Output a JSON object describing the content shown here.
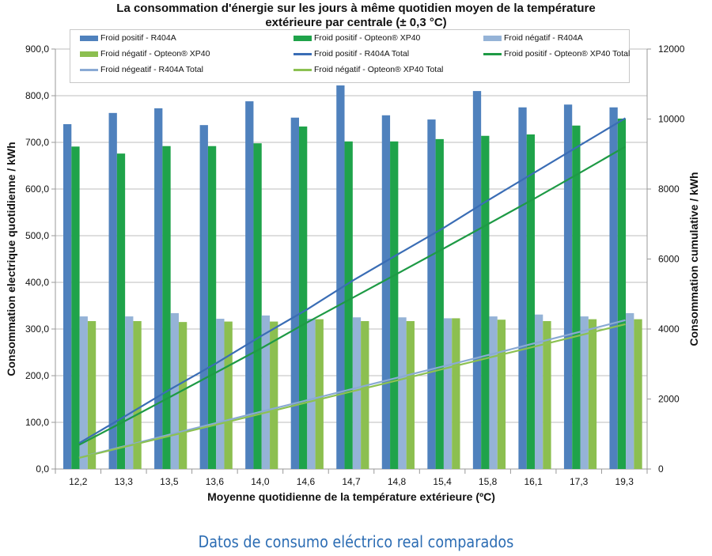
{
  "chart_data": {
    "type": "bar",
    "title": "La consommation d'énergie sur les jours à même quotidien moyen de la température",
    "title_line2": "extérieure par centrale (± 0,3 °C)",
    "xlabel": "Moyenne quotidienne de la température extérieure (ºC)",
    "ylabel": "Consommation electrique quotidienne / kWh",
    "y2label": "Consommation  cumulative / kWh",
    "ylim": [
      0,
      900
    ],
    "y2lim": [
      0,
      12000
    ],
    "yticks": [
      "0,0",
      "100,0",
      "200,0",
      "300,0",
      "400,0",
      "500,0",
      "600,0",
      "700,0",
      "800,0",
      "900,0"
    ],
    "y2ticks": [
      "0",
      "2000",
      "4000",
      "6000",
      "8000",
      "10000",
      "12000"
    ],
    "categories": [
      "12,2",
      "13,3",
      "13,5",
      "13,6",
      "14,0",
      "14,6",
      "14,7",
      "14,8",
      "15,4",
      "15,8",
      "16,1",
      "17,3",
      "19,3"
    ],
    "legend_position": "top",
    "series": [
      {
        "name": "Froid positif - R404A",
        "kind": "bar",
        "color": "#4f81bd",
        "values": [
          739,
          763,
          773,
          737,
          788,
          753,
          822,
          758,
          749,
          810,
          775,
          781,
          775
        ]
      },
      {
        "name": "Froid positif - Opteon® XP40",
        "kind": "bar",
        "color": "#1fa34a",
        "values": [
          691,
          676,
          692,
          692,
          698,
          734,
          702,
          702,
          707,
          714,
          717,
          736,
          751
        ]
      },
      {
        "name": "Froid négatif - R404A",
        "kind": "bar",
        "color": "#95b3d7",
        "values": [
          327,
          327,
          334,
          322,
          329,
          322,
          325,
          325,
          323,
          327,
          331,
          327,
          334
        ]
      },
      {
        "name": "Froid négatif - Opteon® XP40",
        "kind": "bar",
        "color": "#8cbf50",
        "values": [
          317,
          317,
          315,
          316,
          316,
          321,
          317,
          317,
          323,
          320,
          317,
          321,
          321
        ]
      },
      {
        "name": "Froid positif - R404A Total",
        "kind": "line",
        "axis": "right",
        "color": "#3a6db5",
        "values": [
          739,
          1502,
          2275,
          3012,
          3800,
          4553,
          5375,
          6133,
          6882,
          7692,
          8467,
          9248,
          10023
        ]
      },
      {
        "name": "Froid positif - Opteon® XP40 Total",
        "kind": "line",
        "axis": "right",
        "color": "#1e9a45",
        "values": [
          691,
          1367,
          2059,
          2751,
          3449,
          4183,
          4885,
          5587,
          6294,
          7008,
          7725,
          8461,
          9212
        ]
      },
      {
        "name": "Froid négeatif - R404A Total",
        "kind": "line",
        "axis": "right",
        "color": "#8aaad4",
        "values": [
          327,
          654,
          988,
          1310,
          1639,
          1961,
          2286,
          2611,
          2934,
          3261,
          3592,
          3919,
          4253
        ]
      },
      {
        "name": "Froid négatif - Opteon® XP40 Total",
        "kind": "line",
        "axis": "right",
        "color": "#8cc152",
        "values": [
          317,
          634,
          949,
          1265,
          1581,
          1902,
          2219,
          2536,
          2859,
          3179,
          3496,
          3817,
          4138
        ]
      }
    ]
  },
  "caption": "Datos de consumo eléctrico real comparados"
}
